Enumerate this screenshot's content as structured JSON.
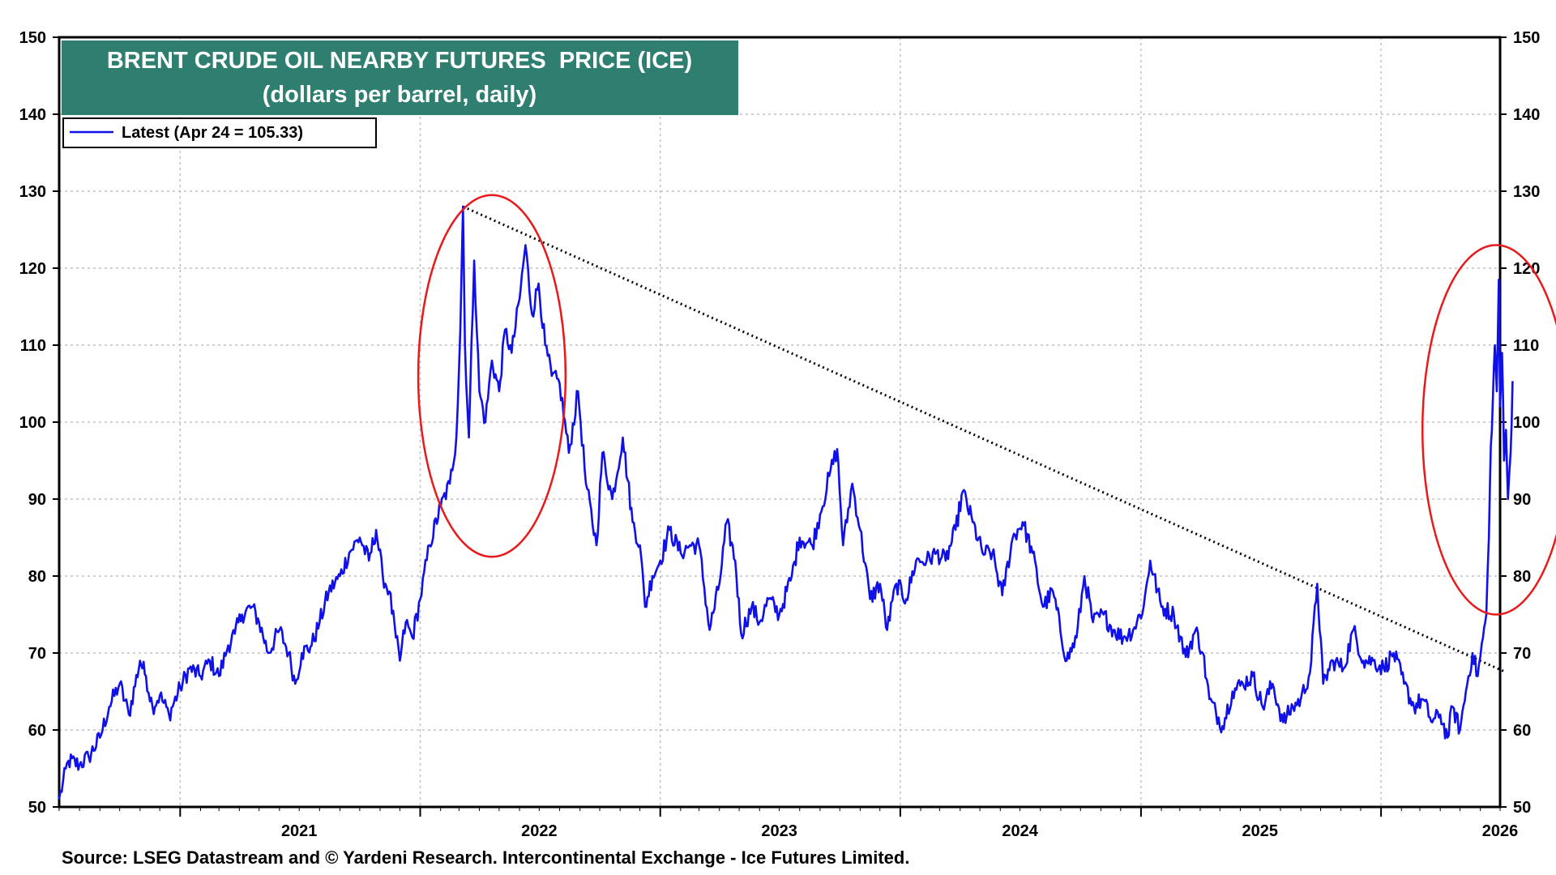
{
  "chart_data": {
    "type": "line",
    "title": "BRENT CRUDE OIL NEARBY FUTURES  PRICE (ICE)",
    "subtitle": "(dollars per barrel, daily)",
    "source": "Source: LSEG Datastream and © Yardeni Research. Intercontinental Exchange - Ice Futures Limited.",
    "ylim": [
      50,
      150
    ],
    "y_ticks": [
      50,
      60,
      70,
      80,
      90,
      100,
      110,
      120,
      130,
      140,
      150
    ],
    "xlim": [
      "2020-07-01",
      "2026-07-01"
    ],
    "x_tick_labels": [
      "2021",
      "2022",
      "2023",
      "2024",
      "2025",
      "2026"
    ],
    "grid": true,
    "legend_position": "top-left",
    "series": [
      {
        "name": "Latest (Apr 24 = 105.33)",
        "color": "#1010e8",
        "points": [
          [
            "2020-07-01",
            51
          ],
          [
            "2020-07-15",
            56
          ],
          [
            "2020-08-01",
            55.5
          ],
          [
            "2020-08-15",
            56.5
          ],
          [
            "2020-09-01",
            59
          ],
          [
            "2020-09-15",
            63
          ],
          [
            "2020-10-01",
            66
          ],
          [
            "2020-10-15",
            62
          ],
          [
            "2020-11-01",
            69
          ],
          [
            "2020-11-10",
            67
          ],
          [
            "2020-11-20",
            63
          ],
          [
            "2020-12-01",
            64.5
          ],
          [
            "2020-12-15",
            62
          ],
          [
            "2021-01-01",
            65.5
          ],
          [
            "2021-01-15",
            68
          ],
          [
            "2021-02-01",
            67
          ],
          [
            "2021-02-15",
            69
          ],
          [
            "2021-03-01",
            67
          ],
          [
            "2021-03-15",
            71
          ],
          [
            "2021-03-25",
            72.5
          ],
          [
            "2021-04-05",
            75
          ],
          [
            "2021-04-20",
            76
          ],
          [
            "2021-05-01",
            74
          ],
          [
            "2021-05-15",
            70
          ],
          [
            "2021-06-01",
            73
          ],
          [
            "2021-06-15",
            70
          ],
          [
            "2021-06-25",
            66
          ],
          [
            "2021-07-05",
            70
          ],
          [
            "2021-07-20",
            71
          ],
          [
            "2021-08-01",
            74
          ],
          [
            "2021-08-15",
            78
          ],
          [
            "2021-09-01",
            80
          ],
          [
            "2021-09-15",
            83
          ],
          [
            "2021-10-01",
            85
          ],
          [
            "2021-10-15",
            82
          ],
          [
            "2021-10-26",
            86
          ],
          [
            "2021-11-05",
            80
          ],
          [
            "2021-11-15",
            78
          ],
          [
            "2021-11-25",
            72
          ],
          [
            "2021-12-01",
            69
          ],
          [
            "2021-12-10",
            74
          ],
          [
            "2021-12-20",
            72
          ],
          [
            "2022-01-01",
            77
          ],
          [
            "2022-01-15",
            84
          ],
          [
            "2022-02-01",
            89
          ],
          [
            "2022-02-15",
            92
          ],
          [
            "2022-02-25",
            98
          ],
          [
            "2022-03-03",
            112
          ],
          [
            "2022-03-07",
            128
          ],
          [
            "2022-03-10",
            110
          ],
          [
            "2022-03-16",
            98
          ],
          [
            "2022-03-24",
            121
          ],
          [
            "2022-04-01",
            104
          ],
          [
            "2022-04-10",
            100
          ],
          [
            "2022-04-20",
            108
          ],
          [
            "2022-05-01",
            104
          ],
          [
            "2022-05-10",
            112
          ],
          [
            "2022-05-20",
            109
          ],
          [
            "2022-06-01",
            116
          ],
          [
            "2022-06-10",
            123
          ],
          [
            "2022-06-20",
            114
          ],
          [
            "2022-06-30",
            118
          ],
          [
            "2022-07-10",
            110
          ],
          [
            "2022-07-20",
            106
          ],
          [
            "2022-08-01",
            105
          ],
          [
            "2022-08-15",
            96
          ],
          [
            "2022-08-29",
            104
          ],
          [
            "2022-09-10",
            92
          ],
          [
            "2022-09-26",
            84
          ],
          [
            "2022-10-05",
            96
          ],
          [
            "2022-10-20",
            90
          ],
          [
            "2022-11-05",
            98
          ],
          [
            "2022-11-20",
            87
          ],
          [
            "2022-12-01",
            84
          ],
          [
            "2022-12-09",
            76
          ],
          [
            "2022-12-20",
            80
          ],
          [
            "2023-01-01",
            82
          ],
          [
            "2023-01-15",
            86
          ],
          [
            "2023-02-01",
            83
          ],
          [
            "2023-02-15",
            84
          ],
          [
            "2023-03-01",
            84
          ],
          [
            "2023-03-17",
            73
          ],
          [
            "2023-04-01",
            79
          ],
          [
            "2023-04-12",
            87
          ],
          [
            "2023-04-25",
            82
          ],
          [
            "2023-05-04",
            72.5
          ],
          [
            "2023-05-20",
            76
          ],
          [
            "2023-06-01",
            74
          ],
          [
            "2023-06-15",
            77
          ],
          [
            "2023-07-01",
            75
          ],
          [
            "2023-07-20",
            80
          ],
          [
            "2023-08-01",
            85
          ],
          [
            "2023-08-20",
            84
          ],
          [
            "2023-09-01",
            88
          ],
          [
            "2023-09-15",
            93
          ],
          [
            "2023-09-27",
            96.5
          ],
          [
            "2023-10-06",
            84
          ],
          [
            "2023-10-20",
            92
          ],
          [
            "2023-11-01",
            86
          ],
          [
            "2023-11-16",
            77
          ],
          [
            "2023-12-01",
            79
          ],
          [
            "2023-12-12",
            73
          ],
          [
            "2023-12-26",
            79
          ],
          [
            "2024-01-10",
            77
          ],
          [
            "2024-01-25",
            82
          ],
          [
            "2024-02-10",
            82
          ],
          [
            "2024-02-25",
            83
          ],
          [
            "2024-03-10",
            82
          ],
          [
            "2024-03-25",
            86
          ],
          [
            "2024-04-05",
            91
          ],
          [
            "2024-04-20",
            87
          ],
          [
            "2024-05-05",
            83
          ],
          [
            "2024-05-20",
            83
          ],
          [
            "2024-06-04",
            77.5
          ],
          [
            "2024-06-20",
            85
          ],
          [
            "2024-07-05",
            87
          ],
          [
            "2024-07-20",
            83
          ],
          [
            "2024-08-05",
            76
          ],
          [
            "2024-08-20",
            78
          ],
          [
            "2024-09-10",
            69
          ],
          [
            "2024-09-25",
            72
          ],
          [
            "2024-10-07",
            80
          ],
          [
            "2024-10-20",
            74
          ],
          [
            "2024-11-05",
            75
          ],
          [
            "2024-11-20",
            73
          ],
          [
            "2024-12-05",
            72
          ],
          [
            "2024-12-20",
            73
          ],
          [
            "2025-01-05",
            76
          ],
          [
            "2025-01-15",
            82
          ],
          [
            "2025-02-01",
            76
          ],
          [
            "2025-02-20",
            75
          ],
          [
            "2025-03-10",
            69.5
          ],
          [
            "2025-03-25",
            73
          ],
          [
            "2025-04-05",
            70
          ],
          [
            "2025-04-15",
            64
          ],
          [
            "2025-05-05",
            60.5
          ],
          [
            "2025-05-20",
            65
          ],
          [
            "2025-06-05",
            66
          ],
          [
            "2025-06-20",
            67
          ],
          [
            "2025-07-05",
            63
          ],
          [
            "2025-07-20",
            66
          ],
          [
            "2025-08-05",
            61
          ],
          [
            "2025-08-20",
            63
          ],
          [
            "2025-09-01",
            64
          ],
          [
            "2025-09-15",
            67.5
          ],
          [
            "2025-09-26",
            79
          ],
          [
            "2025-10-05",
            66
          ],
          [
            "2025-10-20",
            69
          ],
          [
            "2025-11-05",
            68
          ],
          [
            "2025-11-20",
            73
          ],
          [
            "2025-12-05",
            69
          ],
          [
            "2025-12-20",
            69
          ],
          [
            "2026-01-05",
            68
          ],
          [
            "2026-01-20",
            70
          ],
          [
            "2026-02-05",
            66
          ],
          [
            "2026-02-20",
            63
          ],
          [
            "2026-03-05",
            64
          ],
          [
            "2026-03-20",
            61
          ],
          [
            "2026-04-01",
            62
          ],
          [
            "2026-04-12",
            59
          ],
          [
            "2026-04-20",
            63
          ],
          [
            "2026-05-01",
            60
          ],
          [
            "2026-05-10",
            65
          ],
          [
            "2026-05-20",
            70
          ],
          [
            "2026-05-28",
            67
          ],
          [
            "2026-06-05",
            72
          ],
          [
            "2026-06-10",
            75
          ],
          [
            "2026-06-14",
            85
          ],
          [
            "2026-06-17",
            97
          ],
          [
            "2026-06-20",
            103
          ],
          [
            "2026-06-23",
            110
          ],
          [
            "2026-06-26",
            104
          ],
          [
            "2026-06-29",
            118.5
          ],
          [
            "2026-07-01",
            102
          ],
          [
            "2026-07-04",
            109
          ],
          [
            "2026-07-07",
            95
          ],
          [
            "2026-07-10",
            99
          ],
          [
            "2026-07-13",
            90
          ],
          [
            "2026-07-17",
            96
          ],
          [
            "2026-07-20",
            105.33
          ]
        ]
      }
    ],
    "trendline": {
      "style": "dotted",
      "color": "#000000",
      "from": [
        "2022-03-07",
        128
      ],
      "to": [
        "2026-07-10",
        67.5
      ]
    },
    "annotations": [
      {
        "type": "ellipse",
        "color": "#e8191a",
        "center": [
          "2022-04-20",
          106
        ],
        "rx_days": 112,
        "ry_value": 23.5
      },
      {
        "type": "ellipse",
        "color": "#e8191a",
        "center": [
          "2026-06-25",
          99
        ],
        "rx_days": 112,
        "ry_value": 24
      }
    ],
    "colors": {
      "title_bg": "#2e7f6f",
      "title_text": "#ffffff",
      "grid": "#c0c0c0",
      "axis": "#000000"
    }
  }
}
